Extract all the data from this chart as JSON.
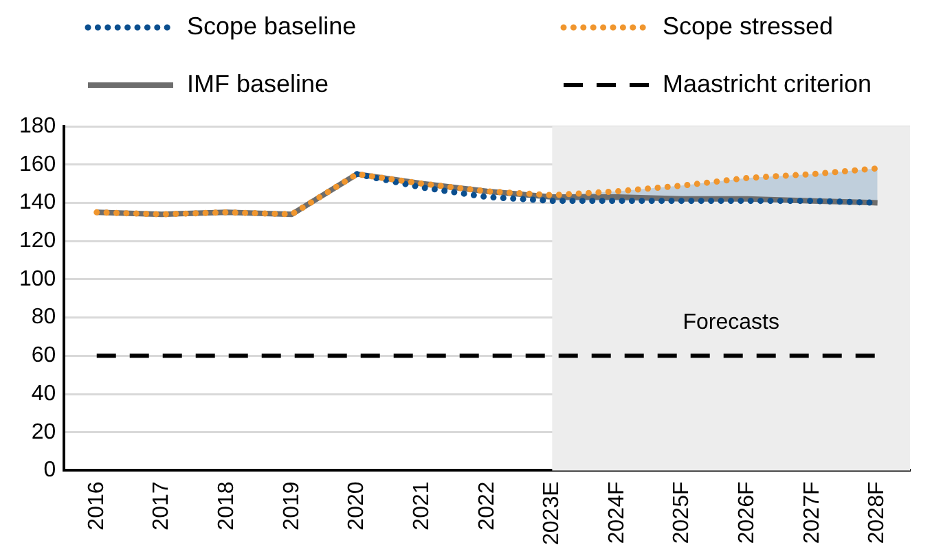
{
  "chart_data": {
    "type": "line",
    "categories": [
      "2016",
      "2017",
      "2018",
      "2019",
      "2020",
      "2021",
      "2022",
      "2023E",
      "2024F",
      "2025F",
      "2026F",
      "2027F",
      "2028F"
    ],
    "series": [
      {
        "name": "Scope baseline",
        "color": "#0b4f8f",
        "line_style": "dotted",
        "values": [
          null,
          null,
          null,
          null,
          155,
          148,
          143,
          141,
          141,
          141,
          141,
          141,
          140
        ]
      },
      {
        "name": "Scope stressed",
        "color": "#f0962e",
        "line_style": "dotted",
        "values": [
          135,
          134,
          135,
          134,
          155,
          150,
          146,
          144,
          146,
          149,
          153,
          155,
          158
        ],
        "lower": [
          null,
          null,
          null,
          null,
          null,
          null,
          null,
          141,
          141,
          141,
          141,
          141,
          140
        ],
        "upper": [
          null,
          null,
          null,
          null,
          null,
          null,
          null,
          144,
          146,
          149,
          153,
          155,
          158
        ]
      },
      {
        "name": "IMF baseline",
        "color": "#6d6d6d",
        "line_style": "solid",
        "values": [
          135,
          134,
          135,
          134,
          155,
          150,
          146,
          143,
          143,
          142,
          142,
          141,
          140
        ]
      },
      {
        "name": "Maastricht criterion",
        "color": "#000000",
        "line_style": "dashed",
        "values": [
          60,
          60,
          60,
          60,
          60,
          60,
          60,
          60,
          60,
          60,
          60,
          60,
          60
        ]
      }
    ],
    "bands": [
      {
        "axis": "x",
        "from": "2023E",
        "to": "2028F",
        "label": "Forecasts",
        "color": "#ededed"
      }
    ],
    "ylim": [
      0,
      180
    ],
    "yticks": [
      0,
      20,
      40,
      60,
      80,
      100,
      120,
      140,
      160,
      180
    ],
    "grid": "y",
    "legend": "top",
    "marker": "none"
  }
}
